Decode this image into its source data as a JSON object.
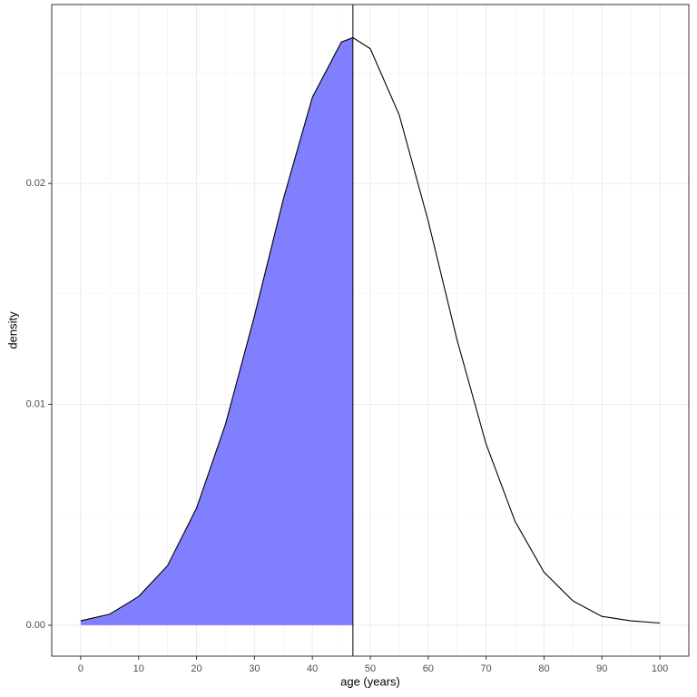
{
  "chart_data": {
    "type": "area",
    "x_label": "age (years)",
    "y_label": "density",
    "x": [
      0,
      5,
      10,
      15,
      20,
      25,
      30,
      35,
      40,
      45,
      47,
      50,
      55,
      60,
      65,
      70,
      75,
      80,
      85,
      90,
      95,
      100
    ],
    "values": [
      0.0002,
      0.0005,
      0.0013,
      0.0027,
      0.0053,
      0.0091,
      0.014,
      0.0193,
      0.0239,
      0.0264,
      0.0266,
      0.0261,
      0.0231,
      0.0183,
      0.0129,
      0.0082,
      0.0047,
      0.0024,
      0.0011,
      0.0004,
      0.0002,
      0.0001
    ],
    "shade_to": 47,
    "vline": 47,
    "fill_color": "#8080ff",
    "line_color": "#000000",
    "xlim": [
      -5,
      105
    ],
    "ylim": [
      -0.0014,
      0.0281
    ],
    "xticks": [
      0,
      10,
      20,
      30,
      40,
      50,
      60,
      70,
      80,
      90,
      100
    ],
    "yticks": [
      {
        "value": 0,
        "label": "0.00"
      },
      0.01,
      0.02
    ],
    "minor_xticks": [
      5,
      15,
      25,
      35,
      45,
      55,
      65,
      75,
      85,
      95
    ],
    "minor_yticks": [
      0.005,
      0.015,
      0.025
    ],
    "grid": true
  }
}
